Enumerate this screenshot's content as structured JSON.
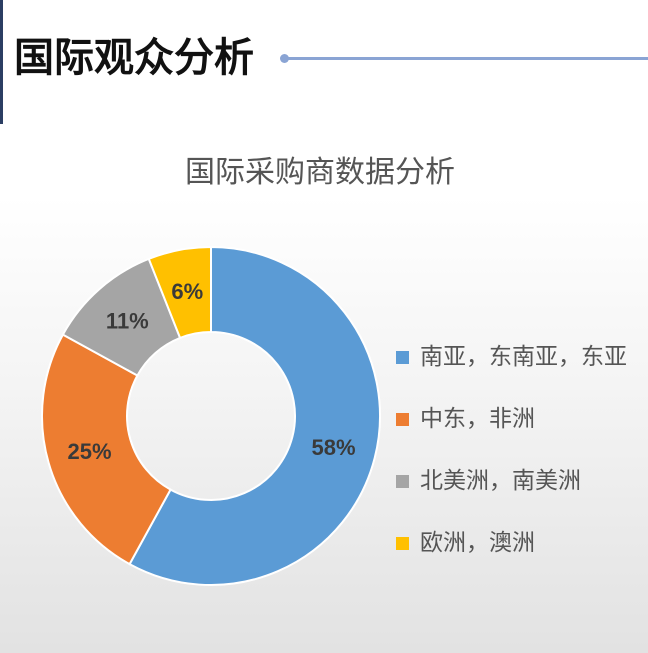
{
  "slide": {
    "title": "国际观众分析"
  },
  "colors": {
    "accent_line": "#8aa4d4",
    "left_bar": "#2b3e63"
  },
  "chart_data": {
    "type": "pie",
    "variant": "donut",
    "title": "国际采购商数据分析",
    "categories": [
      "南亚，东南亚，东亚",
      "中东，非洲",
      "北美洲，南美洲",
      "欧洲，澳洲"
    ],
    "values": [
      58,
      25,
      11,
      6
    ],
    "data_labels": [
      "58%",
      "25%",
      "11%",
      "6%"
    ],
    "colors": [
      "#5b9bd5",
      "#ed7d31",
      "#a5a5a5",
      "#ffc000"
    ],
    "legend_position": "right"
  }
}
